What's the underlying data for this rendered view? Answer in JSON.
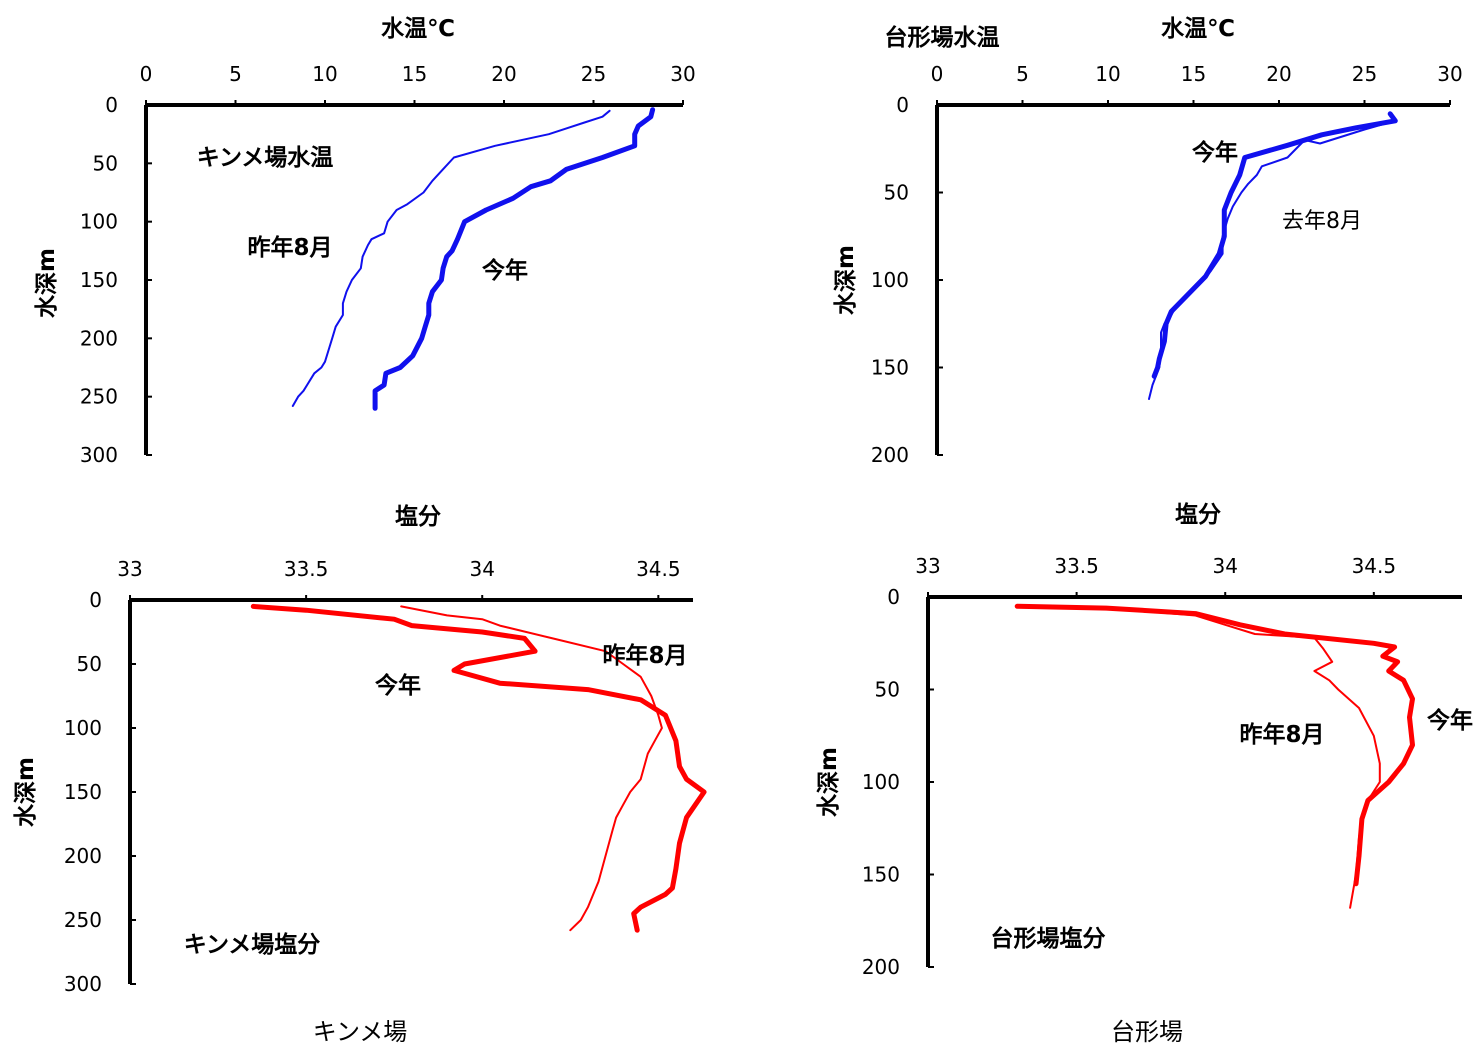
{
  "captions": [
    "キンメ場",
    "台形場"
  ],
  "colors": {
    "temperature": "#1010ee",
    "salinity": "#ff0000",
    "axis": "#000000"
  },
  "chart_data": [
    {
      "type": "line",
      "orientation": "depth-profile",
      "xlabel": "水温℃",
      "ylabel": "水深m",
      "xlim": [
        0,
        30
      ],
      "ylim": [
        0,
        300
      ],
      "x_ticks": [
        "0",
        "5",
        "10",
        "15",
        "20",
        "25",
        "30"
      ],
      "y_ticks": [
        "0",
        "50",
        "100",
        "150",
        "200",
        "250",
        "300"
      ],
      "annotations": [
        {
          "text": "キンメ場水温"
        }
      ],
      "series": [
        {
          "name": "昨年8月",
          "weight": "thin",
          "x": [
            25.9,
            25.5,
            24.5,
            22.5,
            19.5,
            17.2,
            16.6,
            16.0,
            15.5,
            14.6,
            14.0,
            13.5,
            13.3,
            12.6,
            12.4,
            12.1,
            12.0,
            11.5,
            11.2,
            11.0,
            11.0,
            10.6,
            10.4,
            10.2,
            10.0,
            9.8,
            9.4,
            9.0,
            8.8,
            8.5,
            8.2
          ],
          "y": [
            5,
            10,
            15,
            25,
            35,
            45,
            55,
            65,
            75,
            85,
            90,
            100,
            110,
            115,
            120,
            130,
            140,
            150,
            160,
            170,
            180,
            190,
            200,
            210,
            220,
            225,
            230,
            240,
            245,
            250,
            258
          ]
        },
        {
          "name": "今年",
          "weight": "thick",
          "x": [
            28.3,
            28.2,
            27.5,
            27.3,
            27.3,
            25.5,
            23.5,
            22.6,
            21.5,
            20.5,
            19.0,
            17.8,
            17.4,
            17.1,
            16.8,
            16.6,
            16.5,
            16.0,
            15.8,
            15.8,
            15.6,
            15.4,
            14.9,
            14.2,
            13.4,
            13.3,
            12.8,
            12.8
          ],
          "y": [
            4,
            10,
            18,
            25,
            35,
            45,
            55,
            65,
            70,
            80,
            90,
            100,
            115,
            125,
            130,
            140,
            150,
            160,
            170,
            180,
            190,
            200,
            215,
            225,
            230,
            240,
            245,
            260
          ]
        }
      ]
    },
    {
      "type": "line",
      "orientation": "depth-profile",
      "title": "台形場水温",
      "xlabel": "水温℃",
      "ylabel": "水深m",
      "xlim": [
        0,
        30
      ],
      "ylim": [
        0,
        200
      ],
      "x_ticks": [
        "0",
        "5",
        "10",
        "15",
        "20",
        "25",
        "30"
      ],
      "y_ticks": [
        "0",
        "50",
        "100",
        "150",
        "200"
      ],
      "series": [
        {
          "name": "去年8月",
          "weight": "thin",
          "x": [
            26.5,
            26.8,
            25.0,
            22.4,
            21.5,
            20.5,
            19.0,
            18.7,
            18.2,
            17.8,
            17.3,
            17.0,
            16.7,
            16.7,
            16.0,
            14.6,
            14.0,
            13.7,
            13.3,
            13.1,
            13.1,
            13.0,
            12.6,
            12.4
          ],
          "y": [
            6,
            9,
            14,
            22,
            20,
            30,
            35,
            40,
            45,
            50,
            58,
            65,
            75,
            85,
            95,
            110,
            115,
            120,
            125,
            130,
            140,
            150,
            160,
            168
          ]
        },
        {
          "name": "今年",
          "weight": "thick",
          "x": [
            26.5,
            26.8,
            24.5,
            22.5,
            20.5,
            18.0,
            17.7,
            17.2,
            16.8,
            16.8,
            16.5,
            15.7,
            14.5,
            13.7,
            13.4,
            13.3,
            13.0,
            12.9,
            12.7
          ],
          "y": [
            5,
            9,
            13,
            17,
            23,
            30,
            40,
            50,
            60,
            75,
            85,
            98,
            110,
            118,
            125,
            135,
            145,
            150,
            155
          ]
        }
      ]
    },
    {
      "type": "line",
      "orientation": "depth-profile",
      "xlabel": "塩分",
      "ylabel": "水深m",
      "xlim": [
        33,
        34.8
      ],
      "ylim": [
        0,
        300
      ],
      "x_ticks": [
        "33",
        "33.5",
        "34",
        "34.5"
      ],
      "y_ticks": [
        "0",
        "50",
        "100",
        "150",
        "200",
        "250",
        "300"
      ],
      "annotations": [
        {
          "text": "キンメ場塩分"
        }
      ],
      "series": [
        {
          "name": "昨年8月",
          "weight": "thin",
          "x": [
            33.77,
            33.9,
            34.0,
            34.05,
            34.2,
            34.35,
            34.4,
            34.45,
            34.48,
            34.5,
            34.51,
            34.49,
            34.47,
            34.45,
            34.42,
            34.4,
            34.38,
            34.37,
            34.35,
            34.33,
            34.3,
            34.28,
            34.25
          ],
          "y": [
            5,
            12,
            15,
            20,
            30,
            40,
            50,
            60,
            75,
            90,
            100,
            110,
            120,
            140,
            150,
            160,
            170,
            180,
            200,
            220,
            240,
            250,
            258
          ]
        },
        {
          "name": "今年",
          "weight": "thick",
          "x": [
            33.35,
            33.5,
            33.75,
            33.8,
            34.0,
            34.12,
            34.15,
            33.95,
            33.92,
            34.05,
            34.3,
            34.45,
            34.52,
            34.55,
            34.56,
            34.58,
            34.63,
            34.58,
            34.56,
            34.55,
            34.54,
            34.52,
            34.45,
            34.43,
            34.44
          ],
          "y": [
            5,
            8,
            15,
            20,
            25,
            30,
            40,
            50,
            55,
            65,
            70,
            78,
            90,
            110,
            130,
            140,
            150,
            170,
            190,
            210,
            225,
            230,
            240,
            245,
            258
          ]
        }
      ]
    },
    {
      "type": "line",
      "orientation": "depth-profile",
      "xlabel": "塩分",
      "ylabel": "水深m",
      "xlim": [
        33,
        34.8
      ],
      "ylim": [
        0,
        200
      ],
      "x_ticks": [
        "33",
        "33.5",
        "34",
        "34.5"
      ],
      "y_ticks": [
        "0",
        "50",
        "100",
        "150",
        "200"
      ],
      "annotations": [
        {
          "text": "台形場塩分"
        }
      ],
      "series": [
        {
          "name": "昨年8月",
          "weight": "thin",
          "x": [
            33.3,
            33.6,
            33.9,
            34.0,
            34.1,
            34.3,
            34.33,
            34.36,
            34.3,
            34.35,
            34.38,
            34.45,
            34.5,
            34.52,
            34.52,
            34.48,
            34.46,
            34.45,
            34.44,
            34.42
          ],
          "y": [
            5,
            6,
            10,
            15,
            20,
            22,
            28,
            35,
            40,
            45,
            50,
            60,
            75,
            90,
            100,
            110,
            120,
            130,
            150,
            168
          ]
        },
        {
          "name": "今年",
          "weight": "thick",
          "x": [
            33.3,
            33.6,
            33.9,
            34.05,
            34.2,
            34.5,
            34.57,
            34.53,
            34.58,
            34.55,
            34.6,
            34.63,
            34.62,
            34.63,
            34.6,
            34.55,
            34.48,
            34.46,
            34.45,
            34.44
          ],
          "y": [
            5,
            6,
            9,
            15,
            20,
            25,
            27,
            32,
            35,
            40,
            45,
            55,
            65,
            80,
            90,
            100,
            110,
            120,
            140,
            155
          ]
        }
      ]
    }
  ]
}
